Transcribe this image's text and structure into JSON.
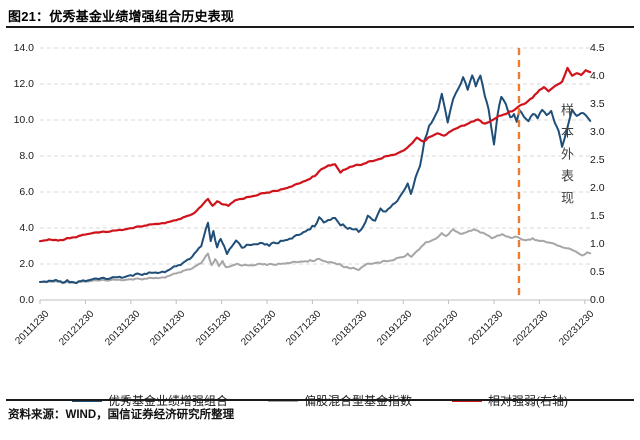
{
  "figure": {
    "title": "图21：优秀基金业绩增强组合历史表现",
    "source": "资料来源：WIND，国信证券经济研究所整理"
  },
  "chart_data": {
    "type": "line",
    "title": "优秀基金业绩增强组合历史表现",
    "x_tick_labels": [
      "20111230",
      "20121230",
      "20131230",
      "20141230",
      "20151230",
      "20161230",
      "20171230",
      "20181230",
      "20191230",
      "20201230",
      "20211230",
      "20221230",
      "20231230"
    ],
    "left_axis": {
      "min": 0,
      "max": 14,
      "step": 2,
      "decimals": 1
    },
    "right_axis": {
      "min": 0,
      "max": 4.5,
      "step": 0.5,
      "decimals": 1
    },
    "grid": "horizontal-dashed",
    "legend_position": "bottom",
    "annotation": {
      "text": "样本外表现",
      "orientation": "vertical"
    },
    "event_line": {
      "x": 2022.55,
      "style": "dashed",
      "color": "#ED7D31"
    },
    "colors": {
      "grid": "#D9D9D9",
      "axis": "#BFBFBF"
    },
    "series": [
      {
        "name": "优秀基金业绩增强组合",
        "axis": "left",
        "color": "#1F4E79",
        "points": [
          [
            2012.0,
            1.0
          ],
          [
            2012.15,
            1.04
          ],
          [
            2012.3,
            1.07
          ],
          [
            2012.45,
            1.03
          ],
          [
            2012.6,
            1.05
          ],
          [
            2012.75,
            1.0
          ],
          [
            2012.9,
            1.03
          ],
          [
            2013.05,
            1.08
          ],
          [
            2013.25,
            1.14
          ],
          [
            2013.45,
            1.18
          ],
          [
            2013.65,
            1.24
          ],
          [
            2013.85,
            1.3
          ],
          [
            2014.0,
            1.37
          ],
          [
            2014.2,
            1.43
          ],
          [
            2014.4,
            1.46
          ],
          [
            2014.6,
            1.53
          ],
          [
            2014.8,
            1.63
          ],
          [
            2014.95,
            1.8
          ],
          [
            2015.15,
            2.0
          ],
          [
            2015.35,
            2.4
          ],
          [
            2015.55,
            3.0
          ],
          [
            2015.7,
            4.25
          ],
          [
            2015.76,
            3.3
          ],
          [
            2015.82,
            3.8
          ],
          [
            2015.9,
            2.9
          ],
          [
            2015.98,
            3.45
          ],
          [
            2016.06,
            2.9
          ],
          [
            2016.12,
            2.55
          ],
          [
            2016.22,
            2.95
          ],
          [
            2016.32,
            3.3
          ],
          [
            2016.45,
            2.95
          ],
          [
            2016.6,
            3.05
          ],
          [
            2016.75,
            3.15
          ],
          [
            2016.9,
            3.1
          ],
          [
            2017.05,
            3.05
          ],
          [
            2017.2,
            3.18
          ],
          [
            2017.35,
            3.3
          ],
          [
            2017.55,
            3.45
          ],
          [
            2017.75,
            3.68
          ],
          [
            2017.9,
            3.92
          ],
          [
            2018.05,
            4.15
          ],
          [
            2018.15,
            4.55
          ],
          [
            2018.25,
            4.3
          ],
          [
            2018.4,
            4.48
          ],
          [
            2018.5,
            4.55
          ],
          [
            2018.62,
            4.18
          ],
          [
            2018.78,
            4.0
          ],
          [
            2018.92,
            3.95
          ],
          [
            2019.02,
            3.8
          ],
          [
            2019.12,
            4.1
          ],
          [
            2019.22,
            4.65
          ],
          [
            2019.38,
            4.45
          ],
          [
            2019.5,
            5.1
          ],
          [
            2019.62,
            4.85
          ],
          [
            2019.72,
            5.2
          ],
          [
            2019.82,
            5.45
          ],
          [
            2019.92,
            5.7
          ],
          [
            2020.02,
            6.1
          ],
          [
            2020.1,
            6.5
          ],
          [
            2020.17,
            5.85
          ],
          [
            2020.27,
            6.8
          ],
          [
            2020.37,
            7.45
          ],
          [
            2020.47,
            8.9
          ],
          [
            2020.57,
            9.6
          ],
          [
            2020.67,
            10.1
          ],
          [
            2020.77,
            10.6
          ],
          [
            2020.85,
            11.45
          ],
          [
            2020.92,
            10.6
          ],
          [
            2020.98,
            9.9
          ],
          [
            2021.1,
            11.2
          ],
          [
            2021.22,
            11.8
          ],
          [
            2021.32,
            12.35
          ],
          [
            2021.42,
            11.7
          ],
          [
            2021.52,
            12.5
          ],
          [
            2021.6,
            11.9
          ],
          [
            2021.7,
            12.45
          ],
          [
            2021.8,
            11.4
          ],
          [
            2021.88,
            10.6
          ],
          [
            2021.94,
            9.6
          ],
          [
            2022.0,
            8.6
          ],
          [
            2022.08,
            10.3
          ],
          [
            2022.16,
            11.3
          ],
          [
            2022.26,
            10.9
          ],
          [
            2022.36,
            10.1
          ],
          [
            2022.44,
            10.4
          ],
          [
            2022.5,
            9.9
          ],
          [
            2022.56,
            10.5
          ],
          [
            2022.66,
            10.2
          ],
          [
            2022.76,
            9.95
          ],
          [
            2022.86,
            10.4
          ],
          [
            2022.96,
            10.15
          ],
          [
            2023.06,
            10.6
          ],
          [
            2023.16,
            10.25
          ],
          [
            2023.26,
            10.5
          ],
          [
            2023.34,
            9.8
          ],
          [
            2023.42,
            9.45
          ],
          [
            2023.5,
            8.55
          ],
          [
            2023.6,
            9.4
          ],
          [
            2023.72,
            10.55
          ],
          [
            2023.82,
            10.2
          ],
          [
            2023.92,
            10.4
          ],
          [
            2024.02,
            10.3
          ],
          [
            2024.12,
            9.95
          ]
        ]
      },
      {
        "name": "偏股混合型基金指数",
        "axis": "left",
        "color": "#A6A6A6",
        "points": [
          [
            2012.0,
            1.0
          ],
          [
            2012.25,
            1.02
          ],
          [
            2012.5,
            0.99
          ],
          [
            2012.75,
            0.97
          ],
          [
            2013.0,
            1.02
          ],
          [
            2013.25,
            1.06
          ],
          [
            2013.5,
            1.1
          ],
          [
            2013.75,
            1.12
          ],
          [
            2014.0,
            1.15
          ],
          [
            2014.25,
            1.17
          ],
          [
            2014.5,
            1.2
          ],
          [
            2014.75,
            1.28
          ],
          [
            2014.95,
            1.42
          ],
          [
            2015.15,
            1.58
          ],
          [
            2015.35,
            1.75
          ],
          [
            2015.55,
            2.05
          ],
          [
            2015.7,
            2.55
          ],
          [
            2015.78,
            1.92
          ],
          [
            2015.86,
            2.25
          ],
          [
            2015.94,
            1.92
          ],
          [
            2016.02,
            2.12
          ],
          [
            2016.1,
            1.78
          ],
          [
            2016.22,
            1.9
          ],
          [
            2016.35,
            2.0
          ],
          [
            2016.5,
            1.92
          ],
          [
            2016.7,
            1.96
          ],
          [
            2016.9,
            1.98
          ],
          [
            2017.1,
            1.96
          ],
          [
            2017.3,
            2.02
          ],
          [
            2017.55,
            2.08
          ],
          [
            2017.8,
            2.15
          ],
          [
            2018.0,
            2.2
          ],
          [
            2018.15,
            2.25
          ],
          [
            2018.3,
            2.12
          ],
          [
            2018.5,
            2.05
          ],
          [
            2018.7,
            1.85
          ],
          [
            2018.9,
            1.75
          ],
          [
            2019.02,
            1.7
          ],
          [
            2019.15,
            1.95
          ],
          [
            2019.3,
            2.05
          ],
          [
            2019.5,
            2.1
          ],
          [
            2019.7,
            2.2
          ],
          [
            2019.9,
            2.35
          ],
          [
            2020.02,
            2.42
          ],
          [
            2020.1,
            2.55
          ],
          [
            2020.18,
            2.4
          ],
          [
            2020.3,
            2.72
          ],
          [
            2020.45,
            3.1
          ],
          [
            2020.6,
            3.3
          ],
          [
            2020.75,
            3.45
          ],
          [
            2020.85,
            3.7
          ],
          [
            2020.95,
            3.55
          ],
          [
            2021.1,
            3.95
          ],
          [
            2021.25,
            3.65
          ],
          [
            2021.4,
            3.78
          ],
          [
            2021.55,
            3.9
          ],
          [
            2021.7,
            3.8
          ],
          [
            2021.85,
            3.62
          ],
          [
            2021.95,
            3.42
          ],
          [
            2022.08,
            3.55
          ],
          [
            2022.18,
            3.65
          ],
          [
            2022.32,
            3.48
          ],
          [
            2022.46,
            3.52
          ],
          [
            2022.56,
            3.42
          ],
          [
            2022.7,
            3.32
          ],
          [
            2022.85,
            3.42
          ],
          [
            2022.95,
            3.32
          ],
          [
            2023.1,
            3.26
          ],
          [
            2023.25,
            3.16
          ],
          [
            2023.4,
            3.05
          ],
          [
            2023.55,
            2.92
          ],
          [
            2023.7,
            2.8
          ],
          [
            2023.85,
            2.62
          ],
          [
            2023.95,
            2.45
          ],
          [
            2024.05,
            2.65
          ],
          [
            2024.12,
            2.6
          ]
        ]
      },
      {
        "name": "相对强弱(右轴)",
        "axis": "right",
        "color": "#D0121B",
        "points": [
          [
            2012.0,
            1.05
          ],
          [
            2012.2,
            1.08
          ],
          [
            2012.4,
            1.06
          ],
          [
            2012.6,
            1.1
          ],
          [
            2012.8,
            1.13
          ],
          [
            2013.0,
            1.17
          ],
          [
            2013.25,
            1.2
          ],
          [
            2013.5,
            1.22
          ],
          [
            2013.75,
            1.25
          ],
          [
            2014.0,
            1.28
          ],
          [
            2014.25,
            1.32
          ],
          [
            2014.5,
            1.35
          ],
          [
            2014.75,
            1.38
          ],
          [
            2015.0,
            1.42
          ],
          [
            2015.2,
            1.48
          ],
          [
            2015.4,
            1.55
          ],
          [
            2015.7,
            1.8
          ],
          [
            2015.8,
            1.68
          ],
          [
            2015.9,
            1.76
          ],
          [
            2016.0,
            1.72
          ],
          [
            2016.15,
            1.68
          ],
          [
            2016.3,
            1.78
          ],
          [
            2016.5,
            1.82
          ],
          [
            2016.7,
            1.86
          ],
          [
            2016.9,
            1.9
          ],
          [
            2017.1,
            1.93
          ],
          [
            2017.3,
            1.97
          ],
          [
            2017.5,
            2.02
          ],
          [
            2017.7,
            2.08
          ],
          [
            2017.9,
            2.15
          ],
          [
            2018.05,
            2.22
          ],
          [
            2018.2,
            2.33
          ],
          [
            2018.35,
            2.4
          ],
          [
            2018.5,
            2.42
          ],
          [
            2018.62,
            2.28
          ],
          [
            2018.78,
            2.36
          ],
          [
            2018.92,
            2.4
          ],
          [
            2019.08,
            2.42
          ],
          [
            2019.28,
            2.48
          ],
          [
            2019.48,
            2.52
          ],
          [
            2019.68,
            2.58
          ],
          [
            2019.88,
            2.62
          ],
          [
            2020.02,
            2.68
          ],
          [
            2020.15,
            2.76
          ],
          [
            2020.3,
            2.9
          ],
          [
            2020.45,
            2.83
          ],
          [
            2020.6,
            2.92
          ],
          [
            2020.75,
            2.98
          ],
          [
            2020.9,
            2.93
          ],
          [
            2021.05,
            3.02
          ],
          [
            2021.2,
            3.08
          ],
          [
            2021.35,
            3.12
          ],
          [
            2021.5,
            3.18
          ],
          [
            2021.65,
            3.22
          ],
          [
            2021.8,
            3.15
          ],
          [
            2021.95,
            3.2
          ],
          [
            2022.1,
            3.28
          ],
          [
            2022.25,
            3.32
          ],
          [
            2022.4,
            3.38
          ],
          [
            2022.56,
            3.46
          ],
          [
            2022.7,
            3.52
          ],
          [
            2022.85,
            3.62
          ],
          [
            2023.0,
            3.75
          ],
          [
            2023.1,
            3.8
          ],
          [
            2023.2,
            3.73
          ],
          [
            2023.35,
            3.82
          ],
          [
            2023.5,
            3.9
          ],
          [
            2023.62,
            4.15
          ],
          [
            2023.72,
            4.0
          ],
          [
            2023.82,
            4.05
          ],
          [
            2023.92,
            4.02
          ],
          [
            2024.02,
            4.1
          ],
          [
            2024.12,
            4.07
          ]
        ]
      }
    ]
  }
}
